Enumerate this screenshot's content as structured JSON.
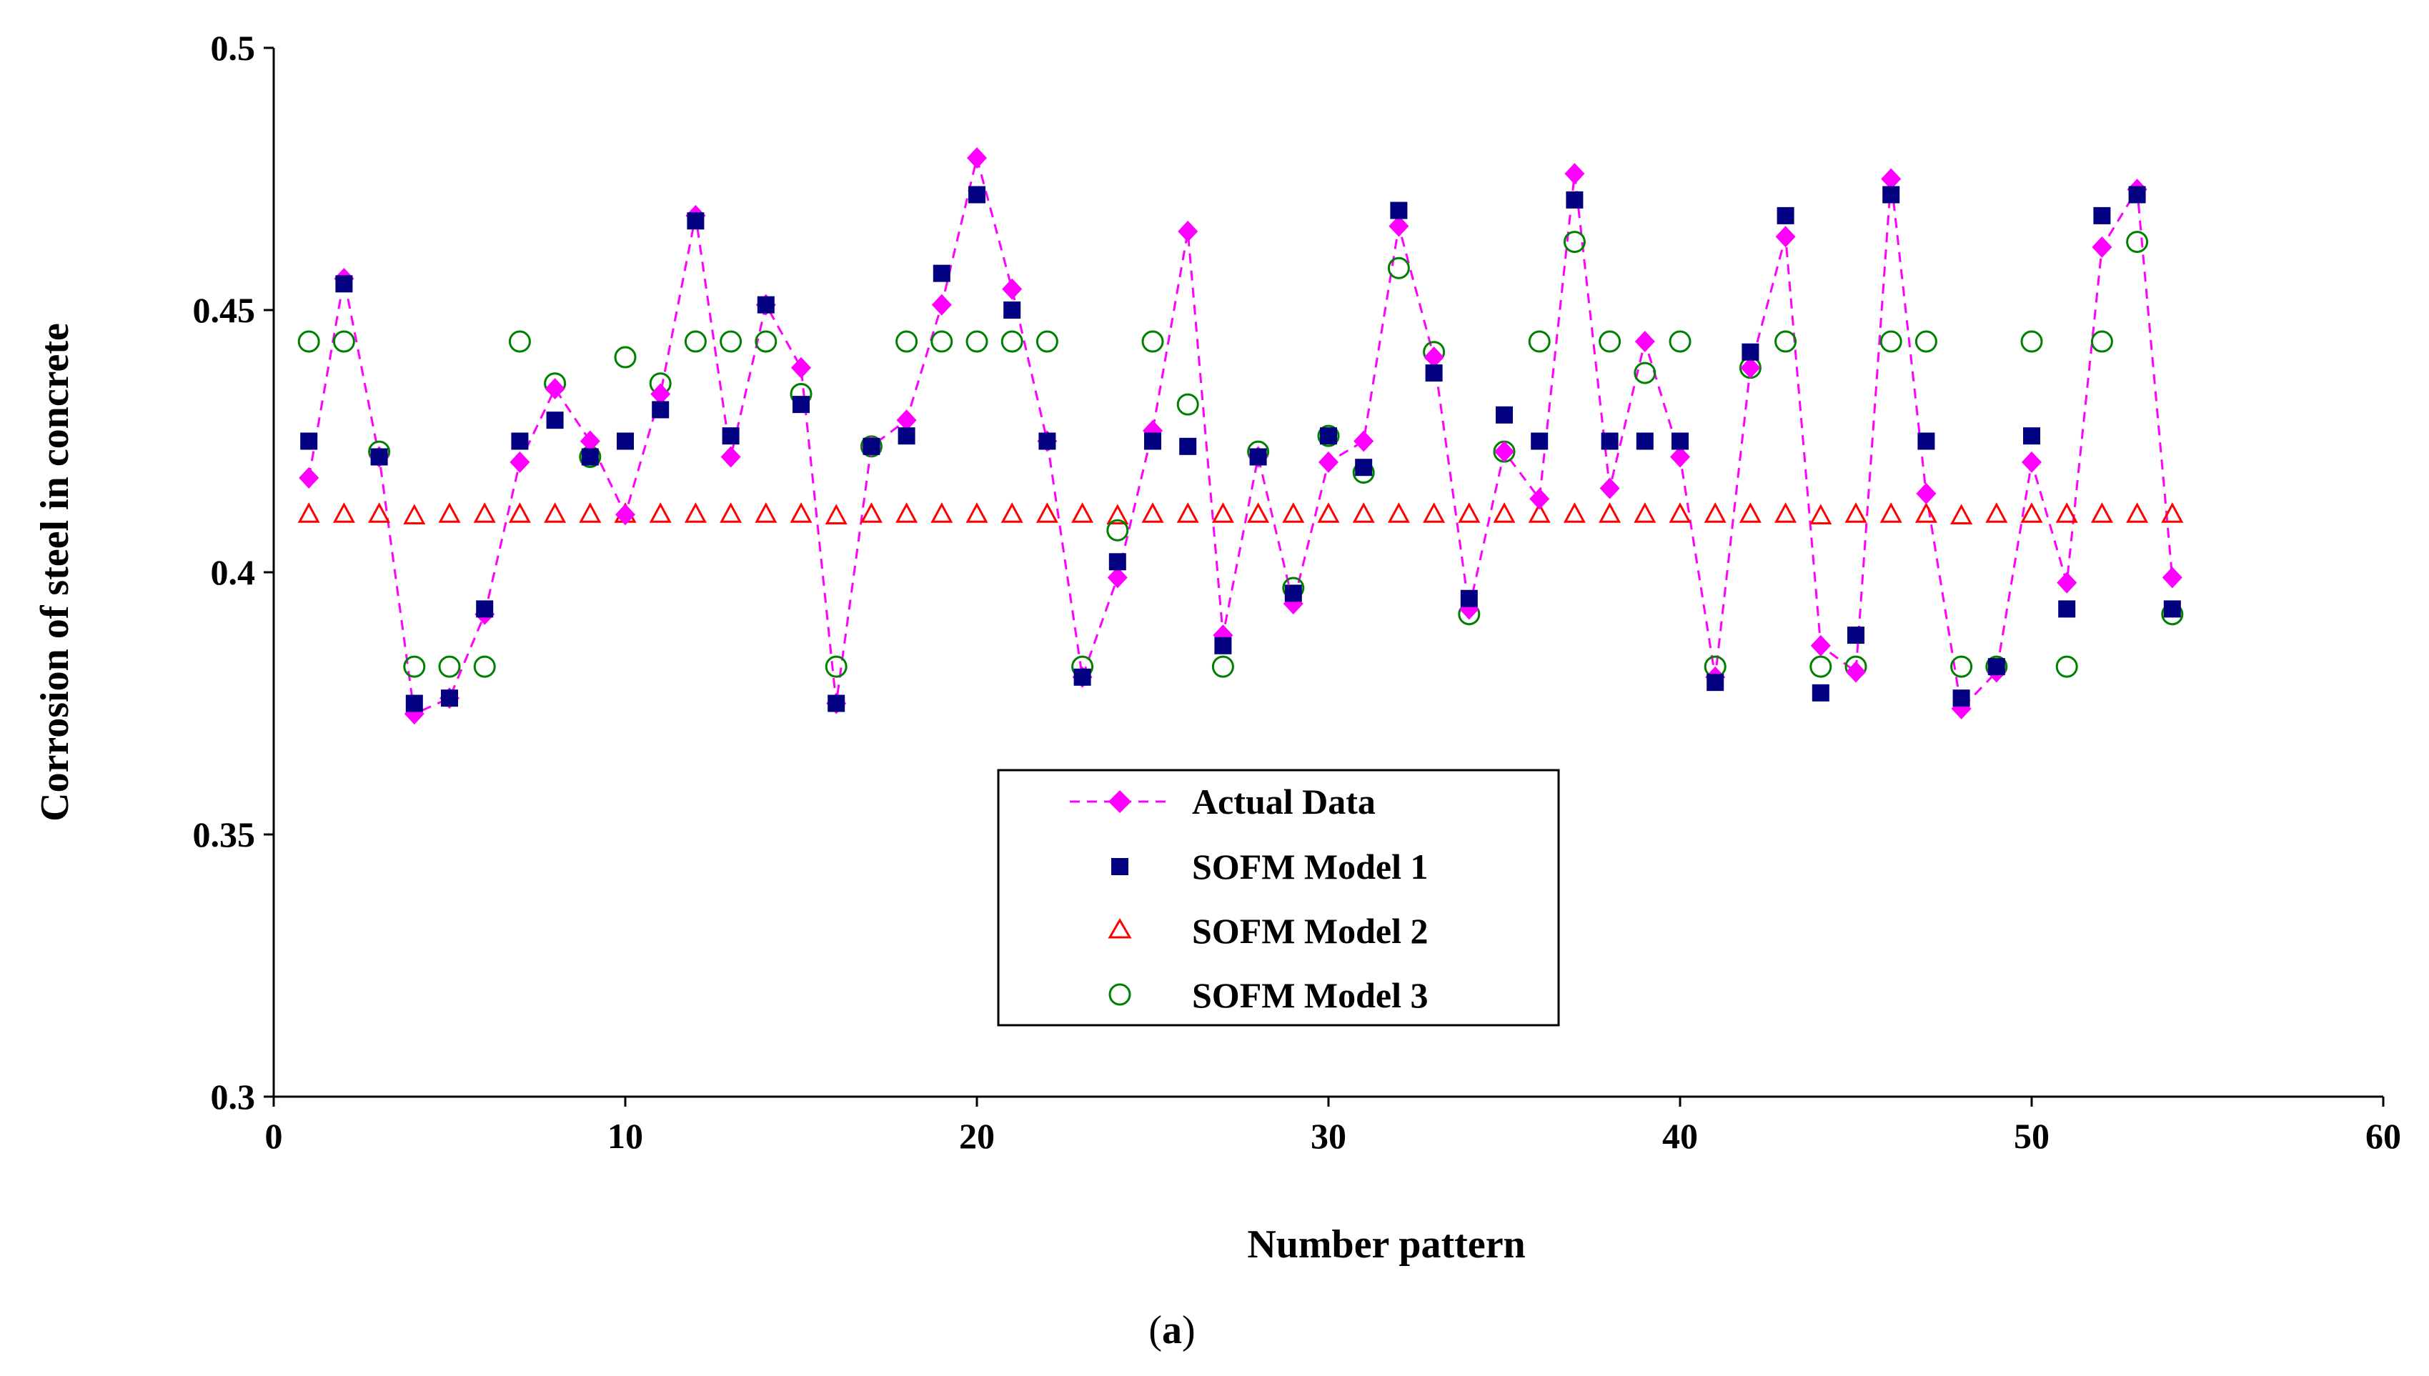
{
  "chart_data": {
    "type": "scatter",
    "title": "",
    "xlabel": "Number pattern",
    "ylabel": "Corrosion of steel in concrete",
    "xlim": [
      0,
      60
    ],
    "ylim": [
      0.3,
      0.5
    ],
    "xticks": [
      0,
      10,
      20,
      30,
      40,
      50,
      60
    ],
    "yticks": [
      0.3,
      0.35,
      0.4,
      0.45,
      0.5
    ],
    "xtick_labels": [
      "0",
      "10",
      "20",
      "30",
      "40",
      "50",
      "60"
    ],
    "ytick_labels": [
      "0.3",
      "0.35",
      "0.4",
      "0.45",
      "0.5"
    ],
    "grid": false,
    "legend_position": "bottom-center",
    "x": [
      1,
      2,
      3,
      4,
      5,
      6,
      7,
      8,
      9,
      10,
      11,
      12,
      13,
      14,
      15,
      16,
      17,
      18,
      19,
      20,
      21,
      22,
      23,
      24,
      25,
      26,
      27,
      28,
      29,
      30,
      31,
      32,
      33,
      34,
      35,
      36,
      37,
      38,
      39,
      40,
      41,
      42,
      43,
      44,
      45,
      46,
      47,
      48,
      49,
      50,
      51,
      52,
      53,
      54
    ],
    "series": [
      {
        "name": "Actual Data",
        "marker": "diamond",
        "line": "dashed",
        "color": "#ff00ff",
        "values": [
          0.418,
          0.456,
          0.422,
          0.373,
          0.376,
          0.392,
          0.421,
          0.435,
          0.425,
          0.411,
          0.434,
          0.468,
          0.422,
          0.451,
          0.439,
          0.375,
          0.424,
          0.429,
          0.451,
          0.479,
          0.454,
          0.425,
          0.38,
          0.399,
          0.427,
          0.465,
          0.388,
          0.422,
          0.394,
          0.421,
          0.425,
          0.466,
          0.441,
          0.393,
          0.423,
          0.414,
          0.476,
          0.416,
          0.444,
          0.422,
          0.38,
          0.439,
          0.464,
          0.386,
          0.381,
          0.475,
          0.415,
          0.374,
          0.381,
          0.421,
          0.398,
          0.462,
          0.473,
          0.399
        ]
      },
      {
        "name": "SOFM Model 1",
        "marker": "square",
        "color": "#000080",
        "values": [
          0.425,
          0.455,
          0.422,
          0.375,
          0.376,
          0.393,
          0.425,
          0.429,
          0.422,
          0.425,
          0.431,
          0.467,
          0.426,
          0.451,
          0.432,
          0.375,
          0.424,
          0.426,
          0.457,
          0.472,
          0.45,
          0.425,
          0.38,
          0.402,
          0.425,
          0.424,
          0.386,
          0.422,
          0.396,
          0.426,
          0.42,
          0.469,
          0.438,
          0.395,
          0.43,
          0.425,
          0.471,
          0.425,
          0.425,
          0.425,
          0.379,
          0.442,
          0.468,
          0.377,
          0.388,
          0.472,
          0.425,
          0.376,
          0.382,
          0.426,
          0.393,
          0.468,
          0.472,
          0.393
        ]
      },
      {
        "name": "SOFM Model 2",
        "marker": "triangle-open",
        "color": "#ff0000",
        "values": [
          0.411,
          0.411,
          0.411,
          0.4107,
          0.411,
          0.411,
          0.411,
          0.411,
          0.411,
          0.411,
          0.411,
          0.411,
          0.411,
          0.411,
          0.411,
          0.4107,
          0.411,
          0.411,
          0.411,
          0.411,
          0.411,
          0.411,
          0.411,
          0.4107,
          0.411,
          0.411,
          0.411,
          0.411,
          0.411,
          0.411,
          0.411,
          0.411,
          0.411,
          0.411,
          0.411,
          0.411,
          0.411,
          0.411,
          0.411,
          0.411,
          0.411,
          0.411,
          0.411,
          0.4107,
          0.411,
          0.411,
          0.411,
          0.4107,
          0.411,
          0.411,
          0.411,
          0.411,
          0.411,
          0.411
        ]
      },
      {
        "name": "SOFM Model 3",
        "marker": "circle-open",
        "color": "#008000",
        "values": [
          0.444,
          0.444,
          0.423,
          0.382,
          0.382,
          0.382,
          0.444,
          0.436,
          0.422,
          0.441,
          0.436,
          0.444,
          0.444,
          0.444,
          0.434,
          0.382,
          0.424,
          0.444,
          0.444,
          0.444,
          0.444,
          0.444,
          0.382,
          0.408,
          0.444,
          0.432,
          0.382,
          0.423,
          0.397,
          0.426,
          0.419,
          0.458,
          0.442,
          0.392,
          0.423,
          0.444,
          0.463,
          0.444,
          0.438,
          0.444,
          0.382,
          0.439,
          0.444,
          0.382,
          0.382,
          0.444,
          0.444,
          0.382,
          0.382,
          0.444,
          0.382,
          0.444,
          0.463,
          0.392
        ]
      }
    ]
  },
  "caption": {
    "open": "(",
    "letter": "a",
    "close": ")"
  }
}
